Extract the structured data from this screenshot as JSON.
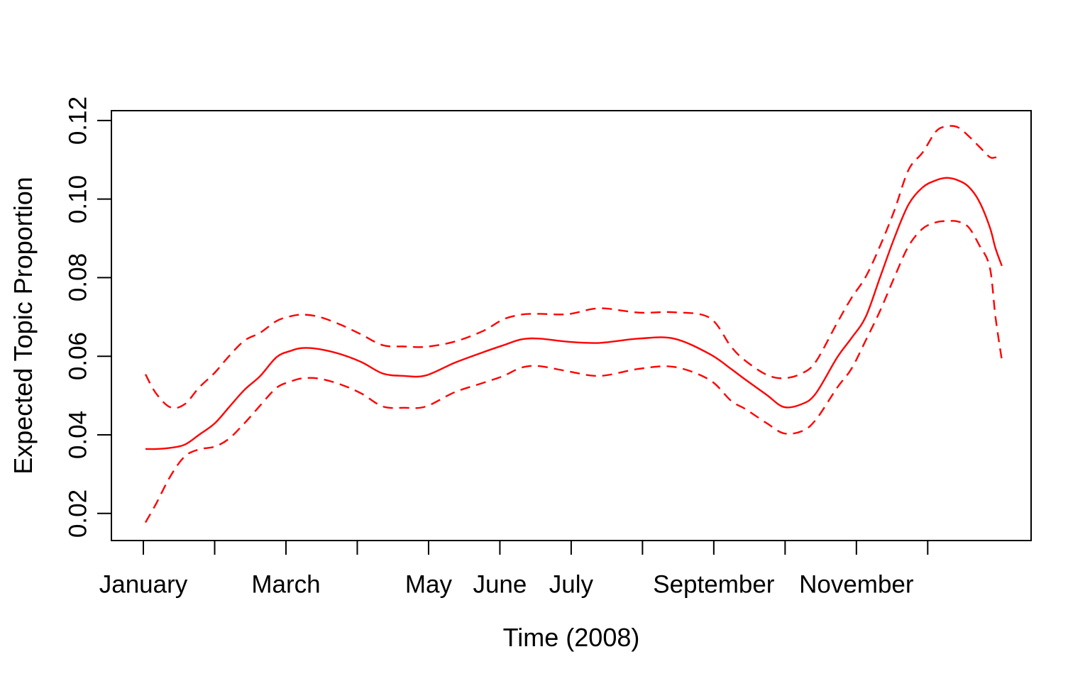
{
  "figure": {
    "background": "#ffffff",
    "x_axis_title": "Time (2008)",
    "y_axis_title": "Expected Topic Proportion"
  },
  "styles": {
    "series_color": "#ff0000",
    "axis_color": "#000000",
    "text_color": "#000000"
  },
  "chart_data": {
    "type": "line",
    "title": "",
    "xlabel": "Time (2008)",
    "ylabel": "Expected Topic Proportion",
    "x_unit": "month index of 2008 (1 = January tick, 13 = Jan 1 2009)",
    "xlim": [
      0.552,
      13.45
    ],
    "ylim": [
      0.0131,
      0.1225
    ],
    "grid": false,
    "legend": "none",
    "x_ticks": [
      {
        "pos": 1,
        "label": "January"
      },
      {
        "pos": 2,
        "label": ""
      },
      {
        "pos": 3,
        "label": "March"
      },
      {
        "pos": 4,
        "label": ""
      },
      {
        "pos": 5,
        "label": "May"
      },
      {
        "pos": 6,
        "label": "June"
      },
      {
        "pos": 7,
        "label": "July"
      },
      {
        "pos": 8,
        "label": ""
      },
      {
        "pos": 9,
        "label": "September"
      },
      {
        "pos": 10,
        "label": ""
      },
      {
        "pos": 11,
        "label": "November"
      },
      {
        "pos": 12,
        "label": ""
      }
    ],
    "y_ticks": [
      {
        "pos": 0.02,
        "label": "0.02"
      },
      {
        "pos": 0.04,
        "label": "0.04"
      },
      {
        "pos": 0.06,
        "label": "0.06"
      },
      {
        "pos": 0.08,
        "label": "0.08"
      },
      {
        "pos": 0.1,
        "label": "0.10"
      },
      {
        "pos": 0.12,
        "label": "0.12"
      }
    ],
    "x": [
      1.03,
      1.18,
      1.38,
      1.58,
      1.78,
      2.0,
      2.2,
      2.42,
      2.64,
      2.87,
      3.07,
      3.24,
      3.47,
      3.77,
      4.06,
      4.36,
      4.66,
      4.96,
      5.36,
      5.76,
      6.05,
      6.3,
      6.55,
      6.95,
      7.4,
      7.95,
      8.44,
      8.94,
      9.24,
      9.44,
      9.74,
      9.98,
      10.23,
      10.43,
      10.73,
      10.93,
      11.13,
      11.33,
      11.53,
      11.73,
      11.93,
      12.12,
      12.27,
      12.42,
      12.57,
      12.72,
      12.87,
      12.95,
      13.04
    ],
    "series": [
      {
        "name": "mean",
        "label": "expected topic proportion (mean)",
        "dashed": false,
        "color": "#ff0000",
        "values": [
          0.0364,
          0.0364,
          0.0367,
          0.0375,
          0.04,
          0.0429,
          0.047,
          0.0515,
          0.055,
          0.0598,
          0.0614,
          0.0621,
          0.0618,
          0.0605,
          0.0585,
          0.0556,
          0.055,
          0.0551,
          0.0583,
          0.061,
          0.0628,
          0.0643,
          0.0645,
          0.0637,
          0.0634,
          0.0645,
          0.0645,
          0.0606,
          0.0568,
          0.0541,
          0.0502,
          0.0471,
          0.0478,
          0.0505,
          0.0597,
          0.0646,
          0.07,
          0.08,
          0.09,
          0.0986,
          0.103,
          0.1048,
          0.1054,
          0.1048,
          0.1032,
          0.0995,
          0.0929,
          0.0875,
          0.083
        ]
      },
      {
        "name": "upper-95-ci",
        "label": "upper confidence bound",
        "dashed": true,
        "color": "#ff0000",
        "values": [
          0.0554,
          0.0505,
          0.047,
          0.0478,
          0.052,
          0.0558,
          0.06,
          0.064,
          0.066,
          0.069,
          0.0702,
          0.0706,
          0.07,
          0.068,
          0.0655,
          0.0628,
          0.0625,
          0.0624,
          0.0637,
          0.0664,
          0.0694,
          0.0706,
          0.0708,
          0.0707,
          0.0722,
          0.0711,
          0.0712,
          0.0698,
          0.0625,
          0.0589,
          0.0553,
          0.0544,
          0.0556,
          0.0586,
          0.0685,
          0.0748,
          0.0802,
          0.088,
          0.097,
          0.1074,
          0.1119,
          0.1173,
          0.1185,
          0.1183,
          0.1161,
          0.1134,
          0.1107,
          0.1106,
          0.1108
        ]
      },
      {
        "name": "lower-95-ci",
        "label": "lower confidence bound",
        "dashed": true,
        "color": "#ff0000",
        "values": [
          0.0177,
          0.0225,
          0.0295,
          0.0345,
          0.0363,
          0.037,
          0.039,
          0.043,
          0.0475,
          0.052,
          0.0536,
          0.0544,
          0.0543,
          0.0528,
          0.0505,
          0.0472,
          0.0469,
          0.0472,
          0.0508,
          0.0532,
          0.055,
          0.0571,
          0.0575,
          0.0562,
          0.055,
          0.0568,
          0.0573,
          0.054,
          0.0487,
          0.0466,
          0.043,
          0.0404,
          0.0409,
          0.0438,
          0.052,
          0.0568,
          0.064,
          0.0715,
          0.08,
          0.088,
          0.0925,
          0.0941,
          0.0944,
          0.0943,
          0.0929,
          0.0884,
          0.0827,
          0.07,
          0.059
        ]
      }
    ]
  }
}
